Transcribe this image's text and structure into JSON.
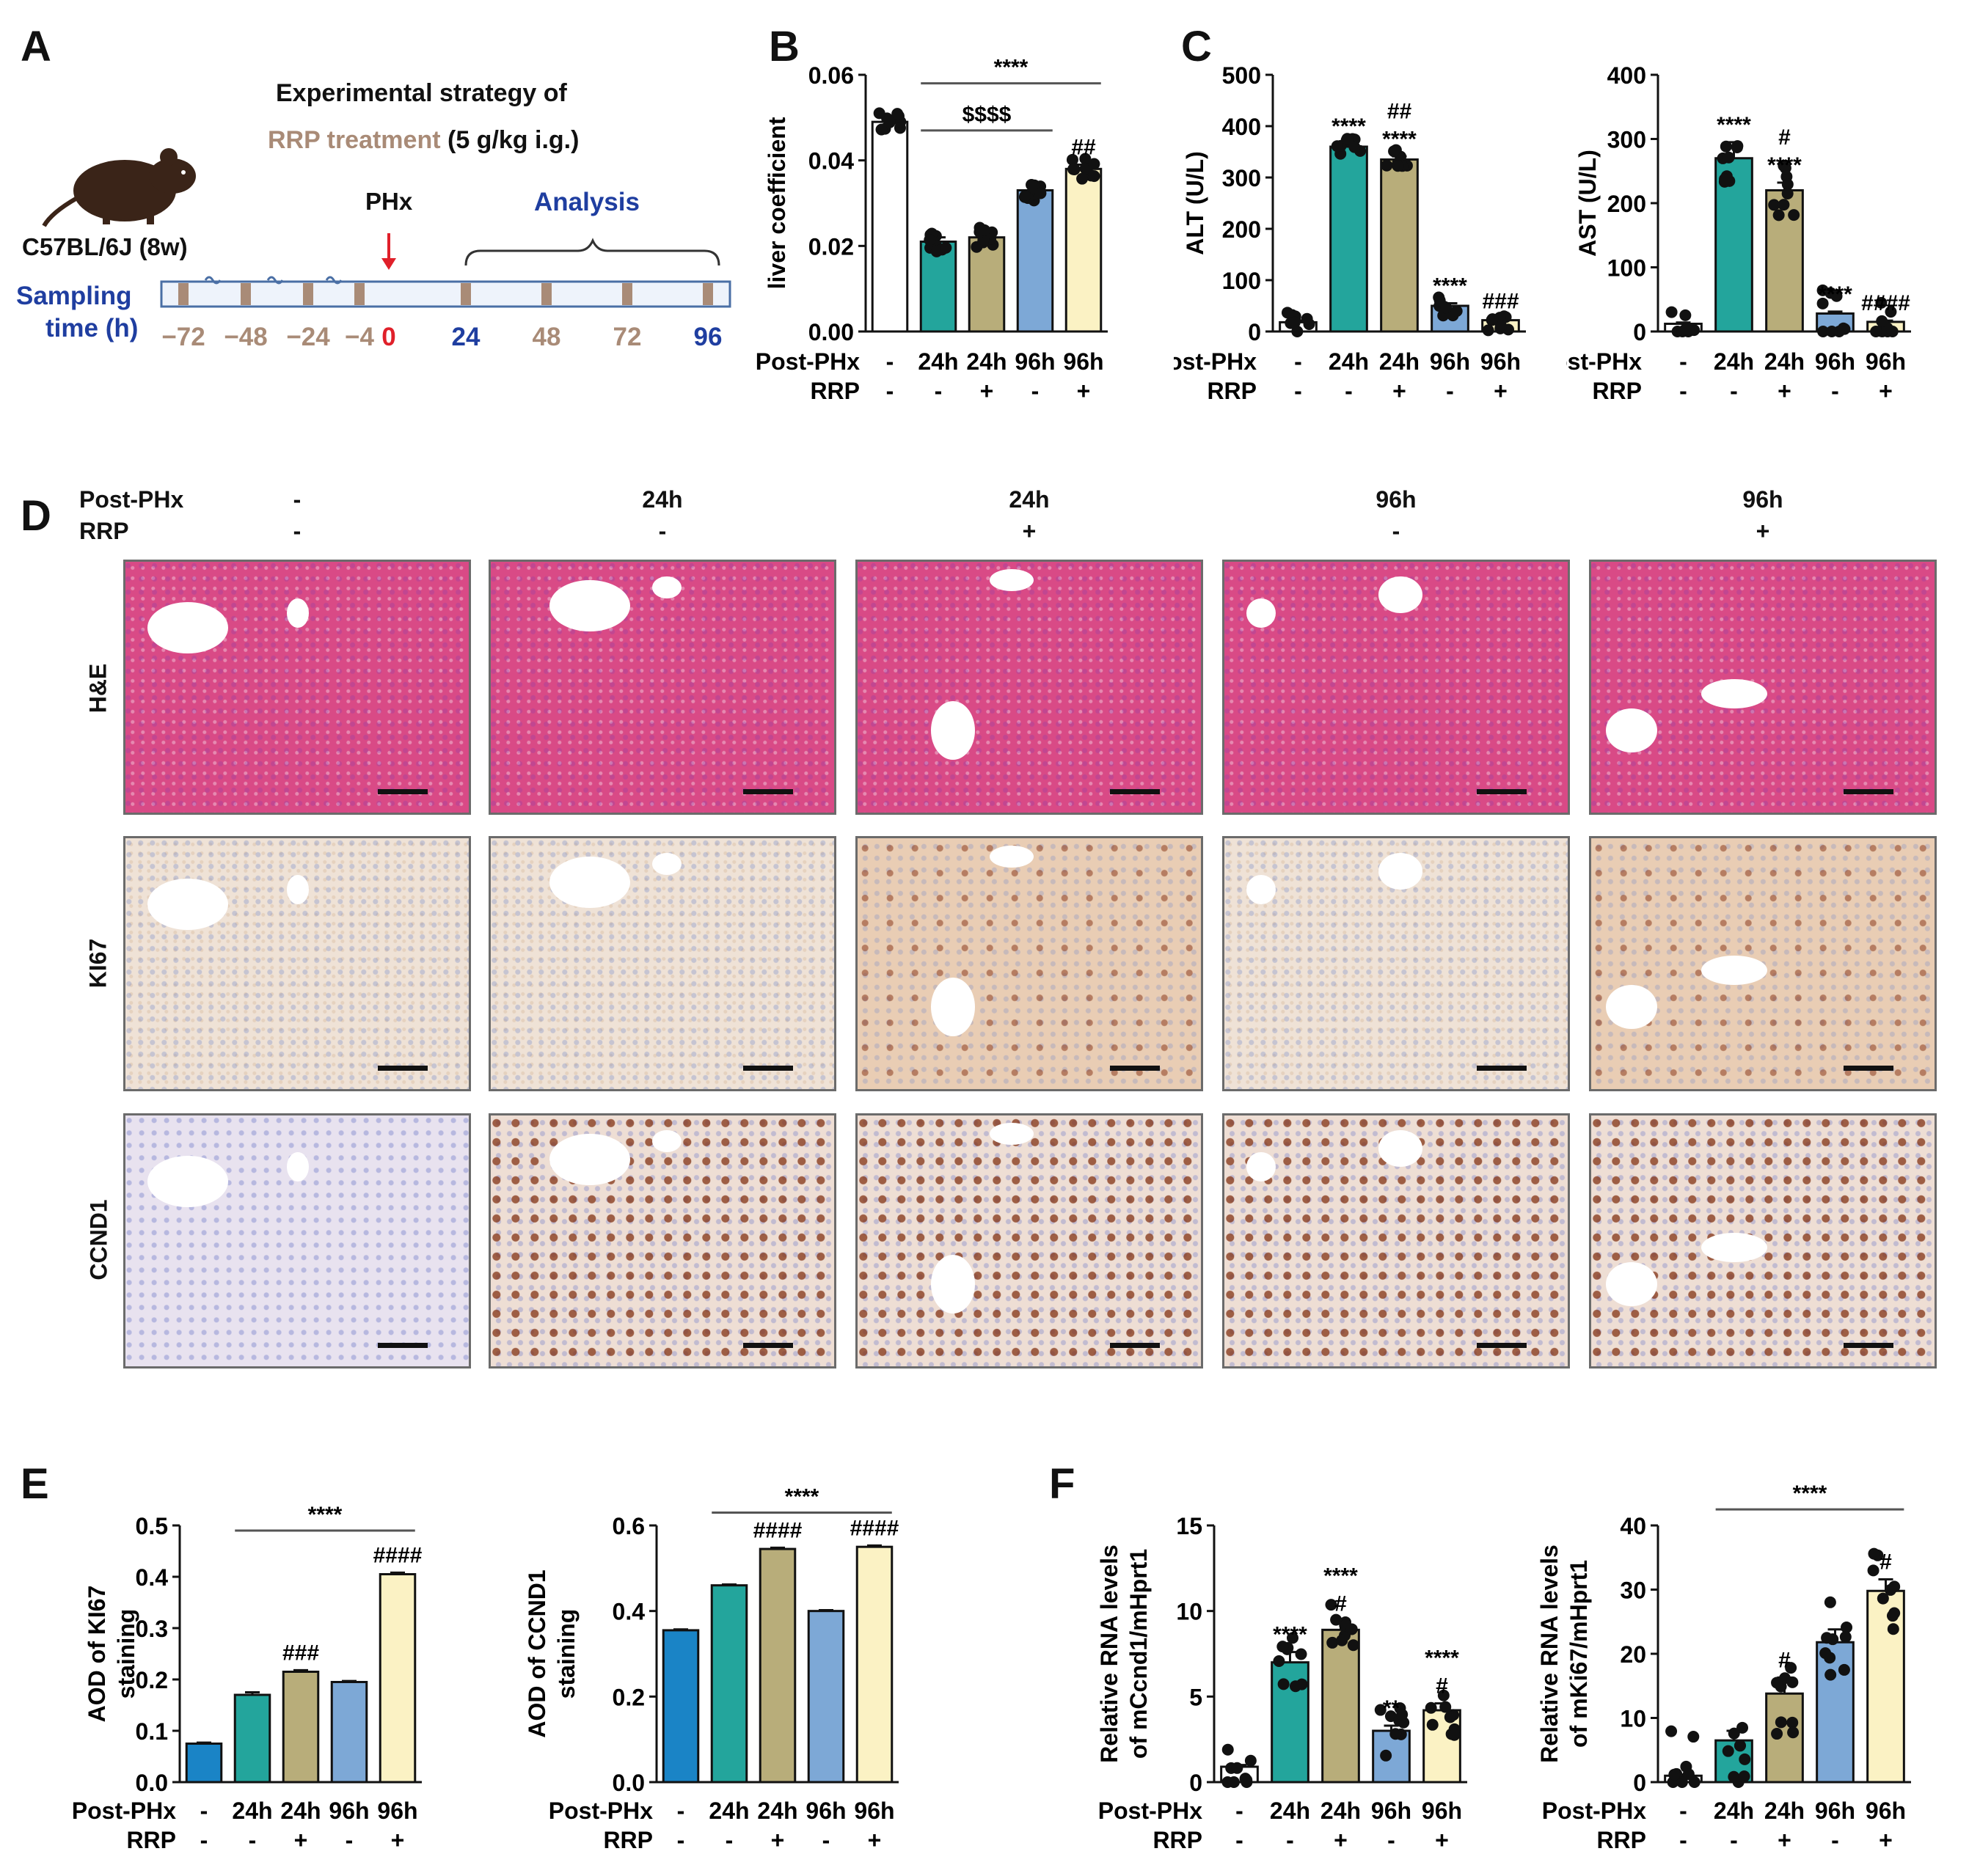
{
  "panels": {
    "A": "A",
    "B": "B",
    "C": "C",
    "D": "D",
    "E": "E",
    "F": "F"
  },
  "panelA": {
    "title_line1": "Experimental strategy of",
    "title_rrp": "RRP treatment",
    "title_dose": "(5 g/kg i.g.)",
    "strain": "C57BL/6J (8w)",
    "phx": "PHx",
    "analysis": "Analysis",
    "sampling_line1": "Sampling",
    "sampling_line2": "time (h)",
    "times": [
      "−72",
      "−48",
      "−24",
      "−4",
      "0",
      "24",
      "48",
      "72",
      "96"
    ],
    "colors": {
      "rrp": "#a98b77",
      "phx": "#e0202a",
      "analysis": "#1f3ea0",
      "bar": "#a98b77"
    }
  },
  "groups": {
    "postphx_label": "Post-PHx",
    "rrp_label": "RRP",
    "postphx": [
      "-",
      "24h",
      "24h",
      "96h",
      "96h"
    ],
    "rrp": [
      "-",
      "-",
      "+",
      "-",
      "+"
    ]
  },
  "colors": {
    "c0": "#ffffff",
    "c1": "#23a59c",
    "c2": "#b8ad7a",
    "c3": "#7da8d6",
    "c4": "#fbf2c4",
    "cblue": "#1a84c6"
  },
  "micrographs": {
    "header_postphx": "Post-PHx",
    "header_rrp": "RRP",
    "columns": [
      {
        "postphx": "-",
        "rrp": "-"
      },
      {
        "postphx": "24h",
        "rrp": "-"
      },
      {
        "postphx": "24h",
        "rrp": "+"
      },
      {
        "postphx": "96h",
        "rrp": "-"
      },
      {
        "postphx": "96h",
        "rrp": "+"
      }
    ],
    "rows": [
      "H&E",
      "KI67",
      "CCND1"
    ]
  },
  "chart_data": [
    {
      "id": "B",
      "type": "bar",
      "ylabel": "liver coefficient",
      "ylim": [
        0,
        0.06
      ],
      "yticks": [
        "0.00",
        "0.02",
        "0.04",
        "0.06"
      ],
      "ytickvals": [
        0,
        0.02,
        0.04,
        0.06
      ],
      "values": [
        0.049,
        0.021,
        0.022,
        0.033,
        0.038
      ],
      "errors": [
        0.001,
        0.001,
        0.001,
        0.001,
        0.001
      ],
      "annotations": [
        null,
        null,
        null,
        null,
        "##"
      ],
      "brackets": [
        {
          "from": 1,
          "to": 4,
          "label": "****",
          "y": 0.058
        },
        {
          "from": 1,
          "to": 3,
          "label": "$$$$",
          "y": 0.047
        }
      ]
    },
    {
      "id": "C1",
      "type": "bar",
      "ylabel": "ALT (U/L)",
      "ylim": [
        0,
        500
      ],
      "yticks": [
        "0",
        "100",
        "200",
        "300",
        "400",
        "500"
      ],
      "ytickvals": [
        0,
        100,
        200,
        300,
        400,
        500
      ],
      "values": [
        18,
        360,
        335,
        50,
        22
      ],
      "errors": [
        3,
        6,
        6,
        5,
        3
      ],
      "annotations": [
        null,
        "****",
        "****",
        "****",
        "###"
      ],
      "annotations2": [
        null,
        null,
        "##",
        null,
        null
      ],
      "brackets": []
    },
    {
      "id": "C2",
      "type": "bar",
      "ylabel": "AST (U/L)",
      "ylim": [
        0,
        400
      ],
      "yticks": [
        "0",
        "100",
        "200",
        "300",
        "400"
      ],
      "ytickvals": [
        0,
        100,
        200,
        300,
        400
      ],
      "values": [
        12,
        270,
        220,
        28,
        15
      ],
      "errors": [
        2,
        25,
        12,
        3,
        2
      ],
      "annotations": [
        null,
        "****",
        "****",
        "****",
        "####"
      ],
      "annotations2": [
        null,
        null,
        "#",
        null,
        null
      ],
      "brackets": []
    },
    {
      "id": "E1",
      "type": "bar",
      "ylabel_line1": "AOD of KI67",
      "ylabel_line2": "staining",
      "ylim": [
        0,
        0.5
      ],
      "yticks": [
        "0.0",
        "0.1",
        "0.2",
        "0.3",
        "0.4",
        "0.5"
      ],
      "ytickvals": [
        0,
        0.1,
        0.2,
        0.3,
        0.4,
        0.5
      ],
      "values": [
        0.075,
        0.17,
        0.215,
        0.195,
        0.405
      ],
      "errors": [
        0.002,
        0.005,
        0.003,
        0.002,
        0.003
      ],
      "annotations": [
        null,
        null,
        "###",
        null,
        "####"
      ],
      "brackets": [
        {
          "from": 1,
          "to": 4,
          "label": "****",
          "y": 0.49
        }
      ]
    },
    {
      "id": "E2",
      "type": "bar",
      "ylabel_line1": "AOD of CCND1",
      "ylabel_line2": "staining",
      "ylim": [
        0,
        0.6
      ],
      "yticks": [
        "0.0",
        "0.2",
        "0.4",
        "0.6"
      ],
      "ytickvals": [
        0,
        0.2,
        0.4,
        0.6
      ],
      "values": [
        0.355,
        0.46,
        0.545,
        0.4,
        0.55
      ],
      "errors": [
        0.002,
        0.002,
        0.003,
        0.002,
        0.003
      ],
      "annotations": [
        null,
        null,
        "####",
        null,
        "####"
      ],
      "brackets": [
        {
          "from": 1,
          "to": 4,
          "label": "****",
          "y": 0.63
        }
      ]
    },
    {
      "id": "F1",
      "type": "bar",
      "ylabel_line1": "Relative RNA levels",
      "ylabel_line2": "of mCcnd1/mHprt1",
      "ylim": [
        0,
        15
      ],
      "yticks": [
        "0",
        "5",
        "10",
        "15"
      ],
      "ytickvals": [
        0,
        5,
        10,
        15
      ],
      "values": [
        0.9,
        7.0,
        8.9,
        3.0,
        4.2
      ],
      "errors": [
        0.1,
        0.6,
        0.5,
        0.3,
        0.4
      ],
      "annotations": [
        null,
        "****",
        "#",
        "**",
        "#"
      ],
      "annotations2": [
        null,
        null,
        "****",
        null,
        "****"
      ],
      "brackets": []
    },
    {
      "id": "F2",
      "type": "bar",
      "ylabel_line1": "Relative RNA levels",
      "ylabel_line2": "of mKi67/mHprt1",
      "ylim": [
        0,
        40
      ],
      "yticks": [
        "0",
        "10",
        "20",
        "30",
        "40"
      ],
      "ytickvals": [
        0,
        10,
        20,
        30,
        40
      ],
      "values": [
        1.0,
        6.5,
        13.8,
        21.8,
        29.8
      ],
      "errors": [
        0.2,
        1.5,
        2.5,
        2.0,
        1.8
      ],
      "annotations": [
        null,
        null,
        "#",
        null,
        "#"
      ],
      "brackets": [
        {
          "from": 1,
          "to": 4,
          "label": "****",
          "y": 42.5
        }
      ]
    }
  ]
}
